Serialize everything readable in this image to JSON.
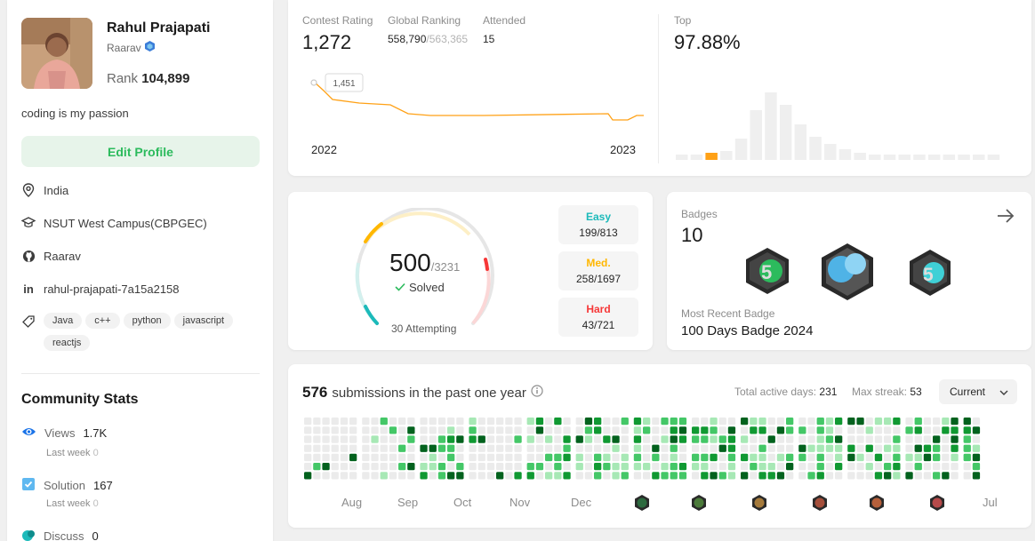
{
  "profile": {
    "name": "Rahul Prajapati",
    "handle": "Raarav",
    "rank_label": "Rank",
    "rank_value": "104,899",
    "about": "coding is my passion",
    "edit_label": "Edit Profile",
    "location": "India",
    "school": "NSUT West Campus(CBPGEC)",
    "github": "Raarav",
    "linkedin": "rahul-prajapati-7a15a2158",
    "skills": [
      "Java",
      "c++",
      "python",
      "javascript",
      "reactjs"
    ]
  },
  "community": {
    "title": "Community Stats",
    "views_label": "Views",
    "views_value": "1.7K",
    "views_lastweek": "Last week",
    "views_lastweek_val": "0",
    "solution_label": "Solution",
    "solution_value": "167",
    "solution_lastweek": "Last week",
    "solution_lastweek_val": "0",
    "discuss_label": "Discuss",
    "discuss_value": "0"
  },
  "rating": {
    "contest_label": "Contest Rating",
    "contest_value": "1,272",
    "global_label": "Global Ranking",
    "global_value": "558,790",
    "global_total": "/563,365",
    "attended_label": "Attended",
    "attended_value": "15",
    "tooltip": "1,451",
    "year_start": "2022",
    "year_end": "2023",
    "top_label": "Top",
    "top_value": "97.88%",
    "accent": "#ffa116"
  },
  "problems": {
    "solved": "500",
    "total": "/3231",
    "solved_label": "Solved",
    "attempting": "30 Attempting",
    "solved_fraction": 0.155,
    "easy_label": "Easy",
    "easy_value": "199/813",
    "easy_color": "#1cbaba",
    "med_label": "Med.",
    "med_value": "258/1697",
    "med_color": "#ffb700",
    "hard_label": "Hard",
    "hard_value": "43/721",
    "hard_color": "#f63737"
  },
  "badges": {
    "label": "Badges",
    "count": "10",
    "recent_label": "Most Recent Badge",
    "recent_value": "100 Days Badge 2024"
  },
  "submissions": {
    "count": "576",
    "text": "submissions in the past one year",
    "active_label": "Total active days:",
    "active_value": "231",
    "streak_label": "Max streak:",
    "streak_value": "53",
    "select_value": "Current",
    "months": [
      "Aug",
      "Sep",
      "Oct",
      "Nov",
      "Dec",
      "Jul"
    ]
  }
}
